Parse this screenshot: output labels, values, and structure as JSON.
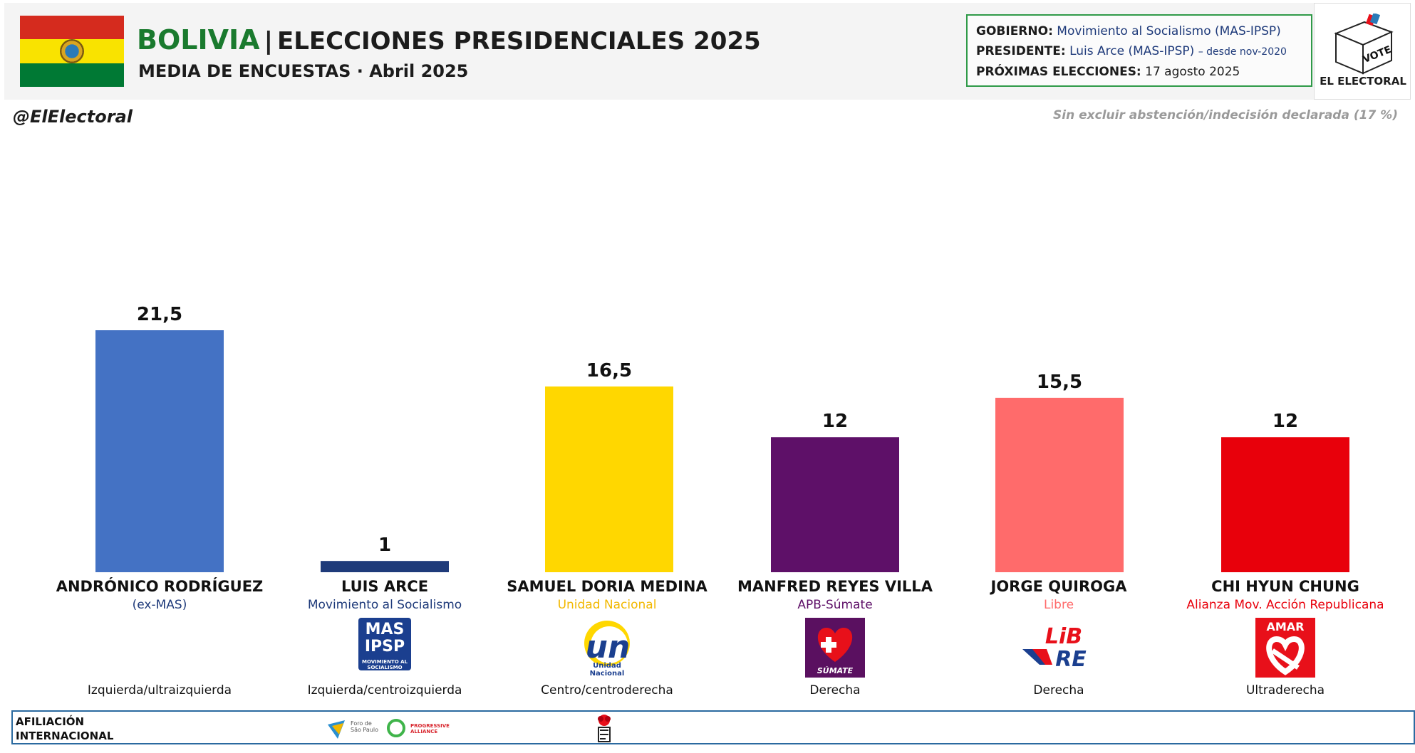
{
  "header": {
    "country": "BOLIVIA",
    "separator": "|",
    "title": "ELECCIONES PRESIDENCIALES 2025",
    "subtitle": "MEDIA DE ENCUESTAS · Abril 2025"
  },
  "flag_colors": [
    "#d52b1e",
    "#f9e300",
    "#007934"
  ],
  "gov": {
    "gobierno_label": "GOBIERNO:",
    "gobierno_value": "Movimiento al Socialismo (MAS-IPSP)",
    "presidente_label": "PRESIDENTE:",
    "presidente_value": "Luis Arce (MAS-IPSP)",
    "presidente_since": "– desde nov-2020",
    "proximas_label": "PRÓXIMAS ELECCIONES:",
    "proximas_value": "17 agosto 2025"
  },
  "logo": {
    "vote_text": "VOTE",
    "brand": "EL ELECTORAL"
  },
  "handle": "@ElElectoral",
  "note": "Sin excluir abstención/indecisión declarada (17 %)",
  "chart_data": {
    "type": "bar",
    "categories": [
      "ANDRÓNICO RODRÍGUEZ",
      "LUIS ARCE",
      "SAMUEL DORIA MEDINA",
      "MANFRED REYES VILLA",
      "JORGE QUIROGA",
      "CHI HYUN CHUNG"
    ],
    "values": [
      21.5,
      1,
      16.5,
      12,
      15.5,
      12
    ],
    "value_labels": [
      "21,5",
      "1",
      "16,5",
      "12",
      "15,5",
      "12"
    ],
    "colors": [
      "#4472c4",
      "#1f3b7a",
      "#ffd700",
      "#5e1068",
      "#ff6b6b",
      "#e8000b"
    ],
    "ylim": [
      0,
      21.5
    ],
    "grid": false
  },
  "candidates": [
    {
      "name": "ANDRÓNICO RODRÍGUEZ",
      "party": "(ex-MAS)",
      "party_color": "#1e3a7a",
      "ideology": "Izquierda/ultraizquierda"
    },
    {
      "name": "LUIS ARCE",
      "party": "Movimiento al Socialismo",
      "party_color": "#1e3a7a",
      "ideology": "Izquierda/centroizquierda",
      "logo_l1": "MAS",
      "logo_l2": "IPSP",
      "logo_l3": "MOVIMIENTO AL SOCIALISMO"
    },
    {
      "name": "SAMUEL DORIA MEDINA",
      "party": "Unidad Nacional",
      "party_color": "#f2b800",
      "ideology": "Centro/centroderecha",
      "logo_text": "un",
      "logo_caption": "Unidad Nacional"
    },
    {
      "name": "MANFRED REYES VILLA",
      "party": "APB-Súmate",
      "party_color": "#5e1068",
      "ideology": "Derecha",
      "logo_caption": "SÚMATE"
    },
    {
      "name": "JORGE QUIROGA",
      "party": "Libre",
      "party_color": "#ff6b6b",
      "ideology": "Derecha",
      "logo_text_1": "LiB",
      "logo_text_2": "RE"
    },
    {
      "name": "CHI HYUN CHUNG",
      "party": "Alianza Mov. Acción Republicana",
      "party_color": "#e8000b",
      "ideology": "Ultraderecha",
      "logo_caption": "AMAR"
    }
  ],
  "afiliacion": {
    "label_1": "AFILIACIÓN",
    "label_2": "INTERNACIONAL",
    "foro_text": "Foro de São Paulo",
    "progressive_text": "PROGRESSIVE ALLIANCE"
  }
}
